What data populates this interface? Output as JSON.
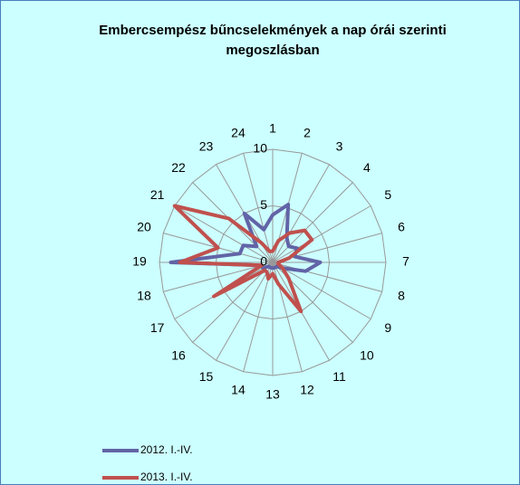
{
  "chart_data": {
    "type": "radar",
    "title": "Embercsempész bűncselekmények a nap órái szerinti megoszlásban",
    "categories": [
      "1",
      "2",
      "3",
      "4",
      "5",
      "6",
      "7",
      "8",
      "9",
      "10",
      "11",
      "12",
      "13",
      "14",
      "15",
      "16",
      "17",
      "18",
      "19",
      "20",
      "21",
      "22",
      "23",
      "24"
    ],
    "series": [
      {
        "name": "2012. I.-IV.",
        "color": "#6264a7",
        "values": [
          4.2,
          5.3,
          2.5,
          2,
          2.5,
          2,
          4.2,
          3,
          1,
          0.5,
          0.5,
          0.5,
          0.5,
          0.5,
          0.5,
          0.5,
          1,
          1,
          9,
          3,
          3,
          2,
          5,
          3
        ]
      },
      {
        "name": "2013. I.-IV.",
        "color": "#c0504d",
        "values": [
          1,
          2,
          3,
          4,
          4,
          1.5,
          0.5,
          0.5,
          1,
          2,
          5,
          2,
          1,
          1.5,
          1,
          1,
          6,
          1,
          8.2,
          5,
          10,
          5.5,
          2,
          1
        ]
      }
    ],
    "ylim": [
      0,
      10
    ],
    "yticks": [
      0,
      5,
      10
    ],
    "grid": true,
    "legend": "bottom-left"
  }
}
